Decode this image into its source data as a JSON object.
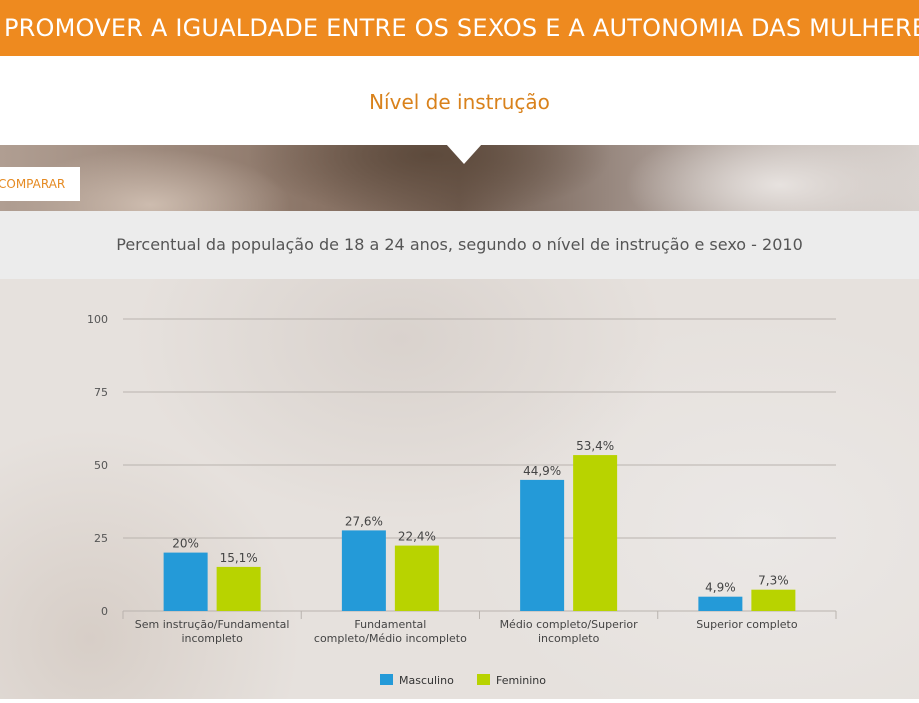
{
  "header": {
    "title": "PROMOVER A IGUALDADE ENTRE OS SEXOS E A AUTONOMIA DAS MULHERES",
    "subtitle": "Nível de instrução",
    "compare_button": "COMPARAR"
  },
  "colors": {
    "accent": "#ee8a1f",
    "masculino": "#249ad8",
    "feminino": "#b8d300"
  },
  "chart_data": {
    "type": "bar",
    "title": "Percentual da população de 18 a 24 anos, segundo o nível de instrução e sexo - 2010",
    "categories": [
      [
        "Sem instrução/Fundamental",
        "incompleto"
      ],
      [
        "Fundamental",
        "completo/Médio incompleto"
      ],
      [
        "Médio completo/Superior",
        "incompleto"
      ],
      [
        "Superior completo"
      ]
    ],
    "series": [
      {
        "name": "Masculino",
        "values": [
          20,
          27.6,
          44.9,
          4.9
        ],
        "labels": [
          "20%",
          "27,6%",
          "44,9%",
          "4,9%"
        ]
      },
      {
        "name": "Feminino",
        "values": [
          15.1,
          22.4,
          53.4,
          7.3
        ],
        "labels": [
          "15,1%",
          "22,4%",
          "53,4%",
          "7,3%"
        ]
      }
    ],
    "ylim": [
      0,
      100
    ],
    "yticks": [
      0,
      25,
      50,
      75,
      100
    ],
    "grid": true,
    "legend": "bottom-center"
  }
}
